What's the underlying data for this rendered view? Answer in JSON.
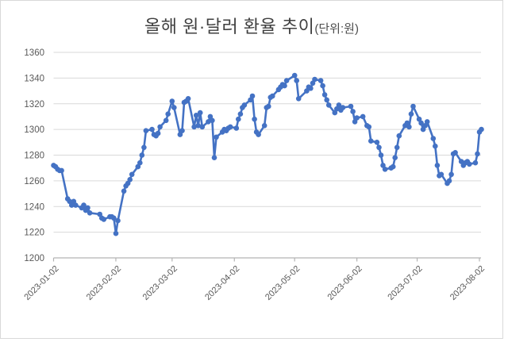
{
  "title": {
    "main": "올해 원·달러 환율 추이",
    "unit": "(단위:원)"
  },
  "chart_data": {
    "type": "line",
    "title": "올해 원·달러 환율 추이",
    "unit_label": "(단위:원)",
    "legend": "none",
    "grid": true,
    "x_axis": {
      "type": "date",
      "tick_labels": [
        "2023-01-02",
        "2023-02-02",
        "2023-03-02",
        "2023-04-02",
        "2023-05-02",
        "2023-06-02",
        "2023-07-02",
        "2023-08-02"
      ]
    },
    "y_axis": {
      "min": 1200,
      "max": 1360,
      "tick_step": 20,
      "tick_labels": [
        "1200",
        "1220",
        "1240",
        "1260",
        "1280",
        "1300",
        "1320",
        "1340",
        "1360"
      ]
    },
    "style": {
      "line_color": "#4472c4",
      "marker": "circle",
      "grid_color": "#d9d9d9",
      "axis_color": "#b3b3b3",
      "label_color": "#595959",
      "title_color": "#404040"
    },
    "series": [
      {
        "points": [
          [
            "2023-01-02",
            1272
          ],
          [
            "2023-01-03",
            1271
          ],
          [
            "2023-01-04",
            1269
          ],
          [
            "2023-01-05",
            1268
          ],
          [
            "2023-01-06",
            1268
          ],
          [
            "2023-01-09",
            1246
          ],
          [
            "2023-01-10",
            1244
          ],
          [
            "2023-01-11",
            1241
          ],
          [
            "2023-01-12",
            1244
          ],
          [
            "2023-01-13",
            1241
          ],
          [
            "2023-01-16",
            1239
          ],
          [
            "2023-01-17",
            1241
          ],
          [
            "2023-01-18",
            1237
          ],
          [
            "2023-01-19",
            1239
          ],
          [
            "2023-01-20",
            1235
          ],
          [
            "2023-01-25",
            1234
          ],
          [
            "2023-01-26",
            1231
          ],
          [
            "2023-01-27",
            1230
          ],
          [
            "2023-01-30",
            1232
          ],
          [
            "2023-01-31",
            1232
          ],
          [
            "2023-02-01",
            1231
          ],
          [
            "2023-02-02",
            1219
          ],
          [
            "2023-02-03",
            1229
          ],
          [
            "2023-02-06",
            1252
          ],
          [
            "2023-02-07",
            1256
          ],
          [
            "2023-02-08",
            1258
          ],
          [
            "2023-02-09",
            1261
          ],
          [
            "2023-02-10",
            1265
          ],
          [
            "2023-02-13",
            1271
          ],
          [
            "2023-02-14",
            1274
          ],
          [
            "2023-02-15",
            1280
          ],
          [
            "2023-02-16",
            1286
          ],
          [
            "2023-02-17",
            1299
          ],
          [
            "2023-02-20",
            1300
          ],
          [
            "2023-02-21",
            1296
          ],
          [
            "2023-02-22",
            1295
          ],
          [
            "2023-02-23",
            1297
          ],
          [
            "2023-02-24",
            1302
          ],
          [
            "2023-02-27",
            1307
          ],
          [
            "2023-02-28",
            1312
          ],
          [
            "2023-03-02",
            1322
          ],
          [
            "2023-03-03",
            1317
          ],
          [
            "2023-03-06",
            1296
          ],
          [
            "2023-03-07",
            1299
          ],
          [
            "2023-03-08",
            1321
          ],
          [
            "2023-03-09",
            1322
          ],
          [
            "2023-03-10",
            1324
          ],
          [
            "2023-03-13",
            1302
          ],
          [
            "2023-03-14",
            1311
          ],
          [
            "2023-03-15",
            1303
          ],
          [
            "2023-03-16",
            1313
          ],
          [
            "2023-03-17",
            1302
          ],
          [
            "2023-03-20",
            1306
          ],
          [
            "2023-03-21",
            1310
          ],
          [
            "2023-03-22",
            1307
          ],
          [
            "2023-03-23",
            1278
          ],
          [
            "2023-03-24",
            1294
          ],
          [
            "2023-03-27",
            1298
          ],
          [
            "2023-03-28",
            1300
          ],
          [
            "2023-03-29",
            1299
          ],
          [
            "2023-03-30",
            1301
          ],
          [
            "2023-03-31",
            1302
          ],
          [
            "2023-04-03",
            1301
          ],
          [
            "2023-04-04",
            1308
          ],
          [
            "2023-04-05",
            1312
          ],
          [
            "2023-04-06",
            1317
          ],
          [
            "2023-04-07",
            1319
          ],
          [
            "2023-04-10",
            1323
          ],
          [
            "2023-04-11",
            1326
          ],
          [
            "2023-04-12",
            1308
          ],
          [
            "2023-04-13",
            1298
          ],
          [
            "2023-04-14",
            1296
          ],
          [
            "2023-04-17",
            1303
          ],
          [
            "2023-04-18",
            1317
          ],
          [
            "2023-04-19",
            1318
          ],
          [
            "2023-04-20",
            1325
          ],
          [
            "2023-04-21",
            1326
          ],
          [
            "2023-04-24",
            1331
          ],
          [
            "2023-04-25",
            1333
          ],
          [
            "2023-04-26",
            1335
          ],
          [
            "2023-04-27",
            1334
          ],
          [
            "2023-04-28",
            1338
          ],
          [
            "2023-05-02",
            1342
          ],
          [
            "2023-05-03",
            1338
          ],
          [
            "2023-05-04",
            1324
          ],
          [
            "2023-05-08",
            1330
          ],
          [
            "2023-05-09",
            1333
          ],
          [
            "2023-05-10",
            1332
          ],
          [
            "2023-05-11",
            1336
          ],
          [
            "2023-05-12",
            1339
          ],
          [
            "2023-05-15",
            1338
          ],
          [
            "2023-05-16",
            1334
          ],
          [
            "2023-05-17",
            1327
          ],
          [
            "2023-05-18",
            1323
          ],
          [
            "2023-05-19",
            1319
          ],
          [
            "2023-05-22",
            1313
          ],
          [
            "2023-05-23",
            1316
          ],
          [
            "2023-05-24",
            1319
          ],
          [
            "2023-05-25",
            1315
          ],
          [
            "2023-05-26",
            1317
          ],
          [
            "2023-05-30",
            1318
          ],
          [
            "2023-05-31",
            1314
          ],
          [
            "2023-06-01",
            1306
          ],
          [
            "2023-06-02",
            1309
          ],
          [
            "2023-06-05",
            1310
          ],
          [
            "2023-06-07",
            1303
          ],
          [
            "2023-06-08",
            1302
          ],
          [
            "2023-06-09",
            1291
          ],
          [
            "2023-06-12",
            1290
          ],
          [
            "2023-06-13",
            1286
          ],
          [
            "2023-06-14",
            1280
          ],
          [
            "2023-06-15",
            1272
          ],
          [
            "2023-06-16",
            1269
          ],
          [
            "2023-06-19",
            1270
          ],
          [
            "2023-06-20",
            1271
          ],
          [
            "2023-06-21",
            1278
          ],
          [
            "2023-06-22",
            1286
          ],
          [
            "2023-06-23",
            1295
          ],
          [
            "2023-06-26",
            1303
          ],
          [
            "2023-06-27",
            1305
          ],
          [
            "2023-06-28",
            1302
          ],
          [
            "2023-06-29",
            1312
          ],
          [
            "2023-06-30",
            1318
          ],
          [
            "2023-07-03",
            1308
          ],
          [
            "2023-07-04",
            1305
          ],
          [
            "2023-07-05",
            1300
          ],
          [
            "2023-07-06",
            1303
          ],
          [
            "2023-07-07",
            1306
          ],
          [
            "2023-07-10",
            1293
          ],
          [
            "2023-07-11",
            1287
          ],
          [
            "2023-07-12",
            1272
          ],
          [
            "2023-07-13",
            1264
          ],
          [
            "2023-07-14",
            1265
          ],
          [
            "2023-07-17",
            1258
          ],
          [
            "2023-07-18",
            1260
          ],
          [
            "2023-07-19",
            1265
          ],
          [
            "2023-07-20",
            1281
          ],
          [
            "2023-07-21",
            1282
          ],
          [
            "2023-07-24",
            1275
          ],
          [
            "2023-07-25",
            1272
          ],
          [
            "2023-07-26",
            1274
          ],
          [
            "2023-07-27",
            1275
          ],
          [
            "2023-07-28",
            1273
          ],
          [
            "2023-07-31",
            1274
          ],
          [
            "2023-08-01",
            1281
          ],
          [
            "2023-08-02",
            1298
          ],
          [
            "2023-08-03",
            1300
          ]
        ]
      }
    ]
  }
}
